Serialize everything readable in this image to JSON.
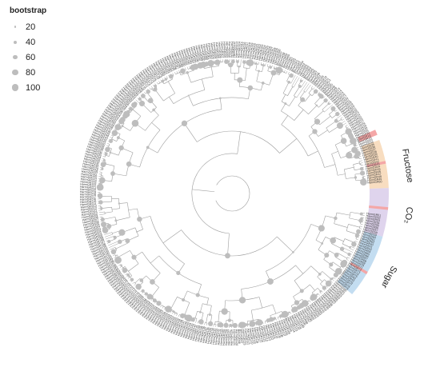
{
  "legend": {
    "title": "bootstrap",
    "items": [
      {
        "value": "20",
        "size": 1.2
      },
      {
        "value": "40",
        "size": 2.0
      },
      {
        "value": "60",
        "size": 2.8
      },
      {
        "value": "80",
        "size": 3.6
      },
      {
        "value": "100",
        "size": 4.4
      }
    ]
  },
  "groups": [
    {
      "name": "Fructose",
      "color": "#f7d7b5"
    },
    {
      "name": "CO₂",
      "color": "#d9cdea"
    },
    {
      "name": "Sugar",
      "color": "#b9d7ee"
    }
  ],
  "highlight_color": "#f4a7a7",
  "node_color": "#bdbdbd",
  "branch_color": "#9e9e9e",
  "tip_labels": [
    "HarmGR51",
    "HarmGR52",
    "HarmGR53",
    "HarmGR54",
    "HarmGR55",
    "HarmGR56",
    "HarmGR57",
    "HarmGR58",
    "HarmGR59",
    "HarmGR60",
    "HarmGR61",
    "HarmGR62",
    "BmorGR40",
    "BmorGR41",
    "HarmGR63",
    "HarmGR64",
    "HarmGR65",
    "HarmGR66",
    "HarmGR67",
    "HarmGR68",
    "HarmGR69",
    "HarmGR70",
    "HarmGR71",
    "HarmGR72",
    "HarmGR73",
    "HarmGR74",
    "HarmGR75",
    "BmorGR42",
    "BmorGR43",
    "HarmGR76",
    "HarmGR77",
    "HarmGR78",
    "HarmGR79",
    "HarmGR80",
    "HarmGR81",
    "HarmGR82",
    "HarmGR83",
    "HarmGR84",
    "HarmGR85",
    "HarmGR86",
    "HarmGR87",
    "HarmGR88",
    "HarmGR89",
    "HarmGR90",
    "BmorGR44",
    "BmorGR45",
    "HarmGR91",
    "HarmGR92",
    "HarmGR93",
    "HarmGR94",
    "HarmGR95",
    "HarmGR96",
    "HarmGR97",
    "HarmGR98",
    "HarmGR99",
    "HarmGR100",
    "HarmGR101",
    "HarmGR102",
    "HarmGR103",
    "HarmGR104",
    "BmorGR46",
    "HarmGR105",
    "HarmGR106",
    "HarmGR107",
    "HarmGR108",
    "HarmGR109",
    "HarmGR110",
    "HarmGR111",
    "HarmGR112",
    "HarmGR113",
    "HarmGR114",
    "HarmGR115",
    "HarmGR116",
    "HarmGR117",
    "HarmGR118",
    "HarmGR119",
    "HarmGR120",
    "HarmGR121",
    "HarmGR122",
    "HarmGR123",
    "BmorGR47",
    "BmorGR48",
    "HarmGR124",
    "HarmGR125",
    "HarmGR126",
    "HarmGR127",
    "HarmGR128",
    "HarmGR129",
    "HarmGR130",
    "HarmGR131",
    "HarmGR132",
    "HarmGR133",
    "HarmGR134",
    "HarmGR135",
    "HarmGR136",
    "HarmGR137",
    "HarmGR138",
    "HarmGR139",
    "HarmGR140",
    "HarmGR141",
    "HarmGR142",
    "HarmGR143",
    "HarmGR144",
    "HarmGR145",
    "HarmGR146",
    "HarmGR147",
    "HarmGR148",
    "HarmGR149",
    "HarmGR150",
    "HarmGR151",
    "HarmGR152",
    "HarmGR153",
    "HarmGR154",
    "HarmGR155",
    "HarmGR156",
    "HarmGR157",
    "HarmGR158",
    "HarmGR159",
    "HarmGR160",
    "HarmGR161",
    "HarmGR162",
    "HarmGR163",
    "HarmGR164",
    "HarmGR165",
    "HarmGR166",
    "HarmGR167",
    "HarmGR168",
    "HarmGR169",
    "HarmGR170",
    "HarmGR171",
    "HarmGR172",
    "HarmGR173",
    "HarmGR174",
    "HarmGR175",
    "HarmGR176",
    "HarmGR177",
    "HarmGR178",
    "HarmGR179",
    "HarmGR180",
    "HarmGR181",
    "HarmGR182",
    "HarmGR183",
    "HarmGR184",
    "HarmGR185",
    "HarmGR186",
    "HarmGR187",
    "HarmGR188",
    "HarmGR189",
    "HarmGR190",
    "HarmGR191",
    "HarmGR192",
    "HarmGR193",
    "HarmGR194",
    "HarmGR195",
    "HarmGR196",
    "HarmGR197",
    "HarmGR198",
    "HarmGR199",
    "HarmGR200",
    "HarmGR201",
    "HarmGR202",
    "HarmGR203",
    "HarmGR204",
    "HarmGR205",
    "HarmGR206",
    "HarmGR207",
    "HarmGR208",
    "HarmGR209",
    "HarmGR210",
    "HarmGR211",
    "HarmGR212",
    "HarmGR213",
    "HarmGR214",
    "HarmGR215",
    "HarmGR216",
    "HarmGR217",
    "HarmGR218",
    "HarmGR219",
    "HarmGR220",
    "HarmGR221",
    "HarmGR222",
    "HarmGR223",
    "HarmGR224",
    "HarmGR225",
    "HarmGR226",
    "HarmGR227",
    "HarmGR228",
    "HarmGR229",
    "HarmGR230",
    "HarmGR231",
    "HarmGR232",
    "HarmGR233",
    "HarmGR234",
    "HarmGR235",
    "HarmGR236",
    "HarmGR237",
    "HarmGR238",
    "HarmGR239",
    "HarmGR240",
    "HarmGR241",
    "HarmGR242",
    "HarmGR243",
    "HarmGR244",
    "HarmGR245",
    "HarmGR246",
    "HarmGR247",
    "HarmGR248",
    "HarmGR249",
    "HarmGR250",
    "HarmGR251",
    "HarmGR252",
    "HarmGR253",
    "HarmGR254",
    "HarmGR255",
    "HarmGR256",
    "HarmGR257",
    "HarmGR258",
    "HarmGR259",
    "HarmGR260",
    "HarmGR261",
    "HarmGR262",
    "HarmGR263",
    "HarmGR264",
    "HarmGR265",
    "HarmGR266",
    "HarmGR267",
    "HarmGR268",
    "HarmGR269",
    "HarmGR270",
    "HarmGR271",
    "HarmGR272",
    "HarmGR273",
    "HarmGR274",
    "HarmGR275",
    "HarmGR276",
    "HarmGR277",
    "HarmGR278",
    "HarmGR279",
    "HarmGR280",
    "HarmGR281",
    "HarmGR282",
    "HarmGR283",
    "HarmGR284",
    "HarmGR285",
    "HarmGR286",
    "HarmGR287",
    "HarmGR288",
    "HarmGR289",
    "HarmGR290",
    "HarmGR291",
    "HarmGR292",
    "HarmGR293",
    "HarmGR294",
    "HarmGR295",
    "HarmGR296",
    "HarmGR297",
    "HarmGR298",
    "HarmGR299",
    "HarmGR300",
    "HarmGR301",
    "HarmGR302",
    "HarmGR303",
    "HarmGR304",
    "HarmGR305",
    "HarmGR306",
    "HarmGR307",
    "HarmGR308",
    "HarmGR309",
    "HarmGR310",
    "HarmGR311",
    "HarmGR312",
    "HarmGR313",
    "HarmGR314",
    "HarmGR315",
    "HarmGR316",
    "HarmGR317",
    "HarmGR318",
    "HarmGR319",
    "HarmGR320",
    "HarmGR321",
    "HarmGR322",
    "HarmGR323",
    "HarmGR324",
    "HarmGR325",
    "HarmGR326",
    "HarmGR327",
    "HarmGR328",
    "HarmGR329",
    "HarmGR330",
    "BmorGR57",
    "BmorGR58",
    "BmorGR59",
    "BmorGR60",
    "HarmGR1",
    "HarmGR2",
    "HarmGR3",
    "BmorGR1",
    "BmorGR2",
    "DmelGR5a",
    "HarmGR4",
    "HarmGR5",
    "HarmGR6",
    "BmorGR4",
    "BmorGR5",
    "BmorGR6",
    "HarmGR7",
    "HarmGR8",
    "DpleGR1",
    "HarmGR9",
    "HarmGR10",
    "HarmGR11",
    "HarmGR12",
    "DpleGR2",
    "BmorGR7",
    "BmorGR8",
    "BmorGR9",
    "HarmGR13",
    "HarmGR14",
    "HarmGR15",
    "HarmGR16",
    "HarmGR17",
    "BmorGR10",
    "BmorGR11",
    "HarmGR18",
    "HarmGR19",
    "HarmGR20",
    "HarmGR21",
    "HarmGR22",
    "HarmGR23",
    "HarmGR24",
    "HarmGR25",
    "HarmGR26",
    "HarmGR27",
    "HarmGR28",
    "HarmGR29",
    "HarmGR30",
    "HarmGR31",
    "HarmGR32",
    "BmorGR12",
    "BmorGR13",
    "HarmGR33",
    "HarmGR34",
    "HarmGR35",
    "HarmGR36",
    "HarmGR37",
    "HarmGR38",
    "HarmGR39",
    "HarmGR40",
    "HarmGR41",
    "HarmGR42",
    "HarmGR43",
    "HarmGR44",
    "HarmGR45",
    "HarmGR46",
    "HarmGR47",
    "HarmGR48",
    "HarmGR49",
    "HarmGR50"
  ]
}
